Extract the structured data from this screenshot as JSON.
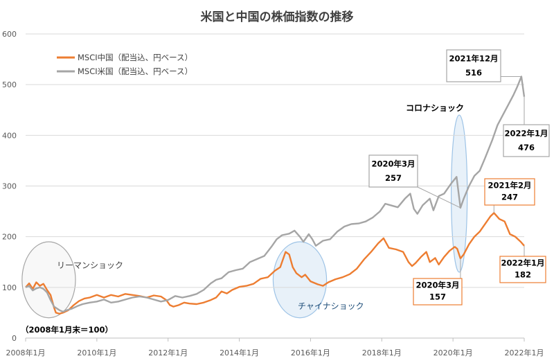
{
  "chart_data": {
    "type": "line",
    "title": "米国と中国の株価指数の推移",
    "xlabel": "",
    "ylabel": "",
    "xlim": [
      2008.0,
      2022.0
    ],
    "ylim": [
      0,
      600
    ],
    "x_ticks": [
      {
        "value": 2008.0,
        "label": "2008年1月"
      },
      {
        "value": 2010.0,
        "label": "2010年1月"
      },
      {
        "value": 2012.0,
        "label": "2012年1月"
      },
      {
        "value": 2014.0,
        "label": "2014年1月"
      },
      {
        "value": 2016.0,
        "label": "2016年1月"
      },
      {
        "value": 2018.0,
        "label": "2018年1月"
      },
      {
        "value": 2020.0,
        "label": "2020年1月"
      },
      {
        "value": 2022.0,
        "label": "2022年1月"
      }
    ],
    "y_ticks": [
      0,
      100,
      200,
      300,
      400,
      500,
      600
    ],
    "grid": "horizontal",
    "legend_position": "top-left",
    "series": [
      {
        "name": "MSCI中国（配当込、円ベース）",
        "color": "#ED7D31",
        "points": [
          [
            2008.0,
            100
          ],
          [
            2008.1,
            108
          ],
          [
            2008.2,
            97
          ],
          [
            2008.3,
            110
          ],
          [
            2008.4,
            103
          ],
          [
            2008.5,
            107
          ],
          [
            2008.6,
            95
          ],
          [
            2008.7,
            85
          ],
          [
            2008.8,
            60
          ],
          [
            2008.85,
            50
          ],
          [
            2008.95,
            48
          ],
          [
            2009.05,
            50
          ],
          [
            2009.2,
            55
          ],
          [
            2009.35,
            65
          ],
          [
            2009.5,
            73
          ],
          [
            2009.65,
            78
          ],
          [
            2009.8,
            80
          ],
          [
            2010.0,
            85
          ],
          [
            2010.2,
            80
          ],
          [
            2010.4,
            85
          ],
          [
            2010.6,
            82
          ],
          [
            2010.8,
            87
          ],
          [
            2011.0,
            85
          ],
          [
            2011.2,
            83
          ],
          [
            2011.4,
            80
          ],
          [
            2011.6,
            84
          ],
          [
            2011.8,
            82
          ],
          [
            2011.95,
            75
          ],
          [
            2012.05,
            65
          ],
          [
            2012.15,
            62
          ],
          [
            2012.3,
            65
          ],
          [
            2012.45,
            70
          ],
          [
            2012.6,
            68
          ],
          [
            2012.8,
            67
          ],
          [
            2013.0,
            70
          ],
          [
            2013.2,
            75
          ],
          [
            2013.35,
            80
          ],
          [
            2013.5,
            92
          ],
          [
            2013.65,
            88
          ],
          [
            2013.8,
            95
          ],
          [
            2014.0,
            101
          ],
          [
            2014.2,
            103
          ],
          [
            2014.4,
            107
          ],
          [
            2014.6,
            117
          ],
          [
            2014.8,
            120
          ],
          [
            2015.0,
            133
          ],
          [
            2015.15,
            140
          ],
          [
            2015.3,
            170
          ],
          [
            2015.4,
            165
          ],
          [
            2015.5,
            140
          ],
          [
            2015.6,
            128
          ],
          [
            2015.75,
            120
          ],
          [
            2015.85,
            125
          ],
          [
            2016.0,
            112
          ],
          [
            2016.2,
            106
          ],
          [
            2016.35,
            103
          ],
          [
            2016.5,
            110
          ],
          [
            2016.7,
            116
          ],
          [
            2016.9,
            120
          ],
          [
            2017.1,
            126
          ],
          [
            2017.3,
            137
          ],
          [
            2017.5,
            155
          ],
          [
            2017.7,
            170
          ],
          [
            2017.9,
            187
          ],
          [
            2018.05,
            197
          ],
          [
            2018.2,
            178
          ],
          [
            2018.4,
            175
          ],
          [
            2018.6,
            170
          ],
          [
            2018.75,
            150
          ],
          [
            2018.85,
            142
          ],
          [
            2018.95,
            148
          ],
          [
            2019.1,
            160
          ],
          [
            2019.25,
            170
          ],
          [
            2019.35,
            150
          ],
          [
            2019.5,
            158
          ],
          [
            2019.6,
            145
          ],
          [
            2019.75,
            160
          ],
          [
            2019.9,
            172
          ],
          [
            2020.05,
            180
          ],
          [
            2020.12,
            176
          ],
          [
            2020.21,
            157
          ],
          [
            2020.3,
            165
          ],
          [
            2020.45,
            185
          ],
          [
            2020.6,
            200
          ],
          [
            2020.75,
            210
          ],
          [
            2020.9,
            225
          ],
          [
            2021.05,
            240
          ],
          [
            2021.15,
            247
          ],
          [
            2021.3,
            235
          ],
          [
            2021.45,
            230
          ],
          [
            2021.6,
            205
          ],
          [
            2021.75,
            200
          ],
          [
            2021.9,
            190
          ],
          [
            2022.0,
            182
          ]
        ]
      },
      {
        "name": "MSCI米国（配当込、円ベース）",
        "color": "#A5A5A5",
        "points": [
          [
            2008.0,
            100
          ],
          [
            2008.1,
            103
          ],
          [
            2008.2,
            94
          ],
          [
            2008.3,
            98
          ],
          [
            2008.4,
            100
          ],
          [
            2008.5,
            97
          ],
          [
            2008.6,
            90
          ],
          [
            2008.7,
            75
          ],
          [
            2008.8,
            62
          ],
          [
            2008.95,
            55
          ],
          [
            2009.05,
            52
          ],
          [
            2009.15,
            55
          ],
          [
            2009.3,
            58
          ],
          [
            2009.45,
            63
          ],
          [
            2009.6,
            67
          ],
          [
            2009.8,
            70
          ],
          [
            2010.0,
            72
          ],
          [
            2010.2,
            76
          ],
          [
            2010.4,
            70
          ],
          [
            2010.6,
            72
          ],
          [
            2010.8,
            76
          ],
          [
            2011.0,
            80
          ],
          [
            2011.2,
            82
          ],
          [
            2011.4,
            80
          ],
          [
            2011.6,
            76
          ],
          [
            2011.8,
            72
          ],
          [
            2012.0,
            75
          ],
          [
            2012.2,
            83
          ],
          [
            2012.4,
            80
          ],
          [
            2012.6,
            83
          ],
          [
            2012.8,
            87
          ],
          [
            2013.0,
            95
          ],
          [
            2013.2,
            108
          ],
          [
            2013.35,
            115
          ],
          [
            2013.5,
            118
          ],
          [
            2013.7,
            130
          ],
          [
            2013.9,
            134
          ],
          [
            2014.1,
            137
          ],
          [
            2014.3,
            150
          ],
          [
            2014.5,
            156
          ],
          [
            2014.7,
            162
          ],
          [
            2014.9,
            180
          ],
          [
            2015.05,
            195
          ],
          [
            2015.2,
            203
          ],
          [
            2015.4,
            206
          ],
          [
            2015.55,
            212
          ],
          [
            2015.7,
            200
          ],
          [
            2015.8,
            190
          ],
          [
            2015.95,
            205
          ],
          [
            2016.05,
            195
          ],
          [
            2016.15,
            182
          ],
          [
            2016.35,
            192
          ],
          [
            2016.55,
            195
          ],
          [
            2016.75,
            210
          ],
          [
            2016.95,
            220
          ],
          [
            2017.15,
            225
          ],
          [
            2017.35,
            226
          ],
          [
            2017.55,
            230
          ],
          [
            2017.75,
            238
          ],
          [
            2017.95,
            250
          ],
          [
            2018.1,
            265
          ],
          [
            2018.25,
            262
          ],
          [
            2018.45,
            258
          ],
          [
            2018.65,
            275
          ],
          [
            2018.8,
            285
          ],
          [
            2018.9,
            255
          ],
          [
            2019.0,
            245
          ],
          [
            2019.15,
            262
          ],
          [
            2019.35,
            275
          ],
          [
            2019.45,
            252
          ],
          [
            2019.6,
            280
          ],
          [
            2019.75,
            285
          ],
          [
            2019.95,
            305
          ],
          [
            2020.1,
            318
          ],
          [
            2020.21,
            257
          ],
          [
            2020.3,
            275
          ],
          [
            2020.45,
            300
          ],
          [
            2020.6,
            320
          ],
          [
            2020.75,
            330
          ],
          [
            2020.9,
            355
          ],
          [
            2021.1,
            390
          ],
          [
            2021.25,
            420
          ],
          [
            2021.4,
            440
          ],
          [
            2021.55,
            460
          ],
          [
            2021.7,
            480
          ],
          [
            2021.8,
            495
          ],
          [
            2021.92,
            516
          ],
          [
            2022.0,
            476
          ]
        ]
      }
    ],
    "annotations": [
      {
        "text": "リーマンショック",
        "color": "#404040"
      },
      {
        "text": "チャイナショック",
        "color": "#1F4E79"
      },
      {
        "text": "コロナショック",
        "color": "#000000"
      },
      {
        "text": "（2008年1月末＝100）",
        "color": "#000000"
      }
    ],
    "callouts": [
      {
        "series": "MSCI米国（配当込、円ベース）",
        "x": 2021.92,
        "y": 516,
        "line1": "2021年12月",
        "line2": "516",
        "box_color": "#A5A5A5"
      },
      {
        "series": "MSCI米国（配当込、円ベース）",
        "x": 2022.0,
        "y": 476,
        "line1": "2022年1月",
        "line2": "476",
        "box_color": "#A5A5A5"
      },
      {
        "series": "MSCI米国（配当込、円ベース）",
        "x": 2020.21,
        "y": 257,
        "line1": "2020年3月",
        "line2": "257",
        "box_color": "#A5A5A5"
      },
      {
        "series": "MSCI中国（配当込、円ベース）",
        "x": 2021.15,
        "y": 247,
        "line1": "2021年2月",
        "line2": "247",
        "box_color": "#ED7D31"
      },
      {
        "series": "MSCI中国（配当込、円ベース）",
        "x": 2022.0,
        "y": 182,
        "line1": "2022年1月",
        "line2": "182",
        "box_color": "#ED7D31"
      },
      {
        "series": "MSCI中国（配当込、円ベース）",
        "x": 2020.21,
        "y": 157,
        "line1": "2020年3月",
        "line2": "157",
        "box_color": "#ED7D31"
      }
    ],
    "highlight_ellipses": [
      {
        "label": "リーマンショック",
        "x_from": 2007.9,
        "x_to": 2009.4,
        "y_from": 40,
        "y_to": 190,
        "style": "grey"
      },
      {
        "label": "チャイナショック",
        "x_from": 2014.95,
        "x_to": 2016.45,
        "y_from": 40,
        "y_to": 190,
        "style": "blue"
      },
      {
        "label": "コロナショック",
        "x_from": 2019.95,
        "x_to": 2020.4,
        "y_from": 130,
        "y_to": 440,
        "style": "blue"
      }
    ]
  }
}
